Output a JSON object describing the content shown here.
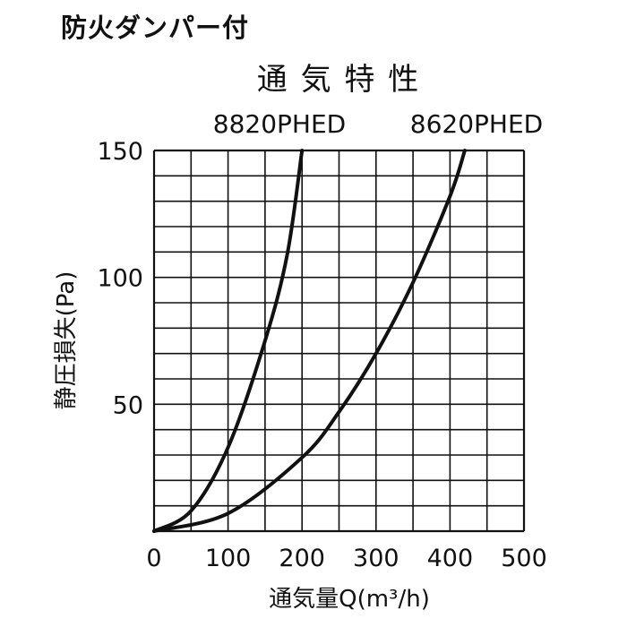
{
  "header": {
    "title": "防火ダンパー付"
  },
  "chart_data": {
    "type": "line",
    "title": "通 気 特 性",
    "xlabel": "通気量Q(m³/h)",
    "ylabel": "静圧損失(Pa)",
    "xlim": [
      0,
      500
    ],
    "ylim": [
      0,
      150
    ],
    "x_ticks": [
      "0",
      "100",
      "200",
      "300",
      "400",
      "500"
    ],
    "y_ticks": [
      "50",
      "100",
      "150"
    ],
    "grid": true,
    "series": [
      {
        "name": "8820PHED",
        "x": [
          0,
          50,
          100,
          150,
          180,
          200
        ],
        "y": [
          0,
          8,
          33,
          75,
          109,
          150
        ]
      },
      {
        "name": "8620PHED",
        "x": [
          0,
          100,
          200,
          250,
          300,
          350,
          400,
          420
        ],
        "y": [
          0,
          7,
          29,
          47,
          70,
          98,
          132,
          150
        ]
      }
    ]
  }
}
